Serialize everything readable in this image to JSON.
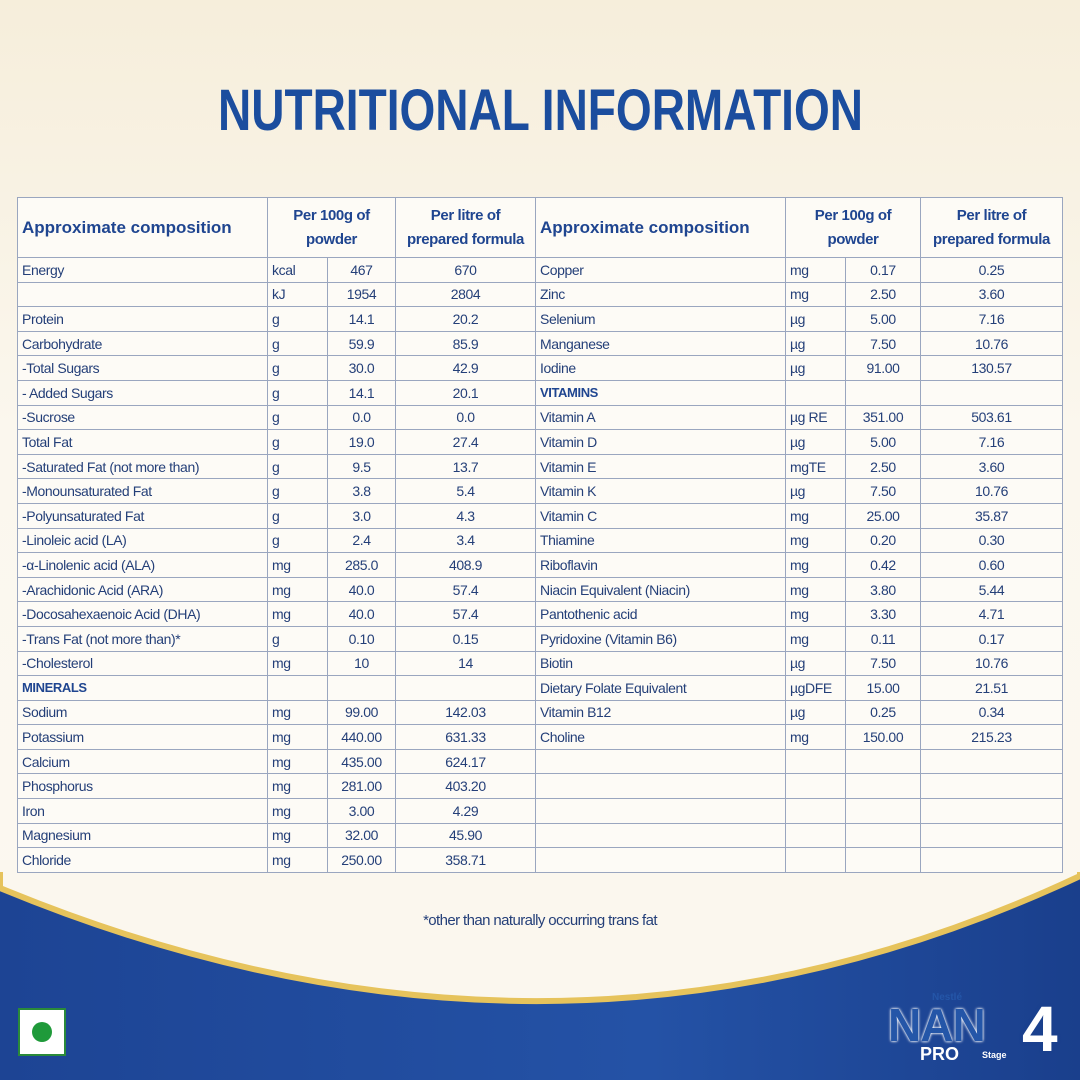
{
  "title": "NUTRITIONAL INFORMATION",
  "table": {
    "headers": [
      "Approximate composition",
      "Per 100g of powder",
      "Per litre of prepared formula"
    ],
    "left_rows": [
      [
        "Energy",
        "kcal",
        "467",
        "670"
      ],
      [
        null,
        "kJ",
        "1954",
        "2804"
      ],
      [
        "Protein",
        "g",
        "14.1",
        "20.2"
      ],
      [
        "Carbohydrate",
        "g",
        "59.9",
        "85.9"
      ],
      [
        "-Total Sugars",
        "g",
        "30.0",
        "42.9"
      ],
      [
        "- Added Sugars",
        "g",
        "14.1",
        "20.1"
      ],
      [
        "-Sucrose",
        "g",
        "0.0",
        "0.0"
      ],
      [
        "Total Fat",
        "g",
        "19.0",
        "27.4"
      ],
      [
        "-Saturated Fat (not more than)",
        "g",
        "9.5",
        "13.7"
      ],
      [
        "-Monounsaturated Fat",
        "g",
        "3.8",
        "5.4"
      ],
      [
        "-Polyunsaturated Fat",
        "g",
        "3.0",
        "4.3"
      ],
      [
        "-Linoleic acid (LA)",
        "g",
        "2.4",
        "3.4"
      ],
      [
        "-α-Linolenic acid (ALA)",
        "mg",
        "285.0",
        "408.9"
      ],
      [
        "-Arachidonic Acid (ARA)",
        "mg",
        "40.0",
        "57.4"
      ],
      [
        "-Docosahexaenoic Acid (DHA)",
        "mg",
        "40.0",
        "57.4"
      ],
      [
        "-Trans Fat (not more than)*",
        "g",
        "0.10",
        "0.15"
      ],
      [
        "-Cholesterol",
        "mg",
        "10",
        "14"
      ],
      [
        "MINERALS"
      ],
      [
        "Sodium",
        "mg",
        "99.00",
        "142.03"
      ],
      [
        "Potassium",
        "mg",
        "440.00",
        "631.33"
      ],
      [
        "Calcium",
        "mg",
        "435.00",
        "624.17"
      ],
      [
        "Phosphorus",
        "mg",
        "281.00",
        "403.20"
      ],
      [
        "Iron",
        "mg",
        "3.00",
        "4.29"
      ],
      [
        "Magnesium",
        "mg",
        "32.00",
        "45.90"
      ],
      [
        "Chloride",
        "mg",
        "250.00",
        "358.71"
      ]
    ],
    "right_rows": [
      [
        "Copper",
        "mg",
        "0.17",
        "0.25"
      ],
      [
        "Zinc",
        "mg",
        "2.50",
        "3.60"
      ],
      [
        "Selenium",
        "µg",
        "5.00",
        "7.16"
      ],
      [
        "Manganese",
        "µg",
        "7.50",
        "10.76"
      ],
      [
        "Iodine",
        "µg",
        "91.00",
        "130.57"
      ],
      [
        "VITAMINS"
      ],
      [
        "Vitamin A",
        "µg RE",
        "351.00",
        "503.61"
      ],
      [
        "Vitamin D",
        "µg",
        "5.00",
        "7.16"
      ],
      [
        "Vitamin E",
        "mgTE",
        "2.50",
        "3.60"
      ],
      [
        "Vitamin K",
        "µg",
        "7.50",
        "10.76"
      ],
      [
        "Vitamin C",
        "mg",
        "25.00",
        "35.87"
      ],
      [
        "Thiamine",
        "mg",
        "0.20",
        "0.30"
      ],
      [
        "Riboflavin",
        "mg",
        "0.42",
        "0.60"
      ],
      [
        "Niacin Equivalent (Niacin)",
        "mg",
        "3.80",
        "5.44"
      ],
      [
        "Pantothenic acid",
        "mg",
        "3.30",
        "4.71"
      ],
      [
        "Pyridoxine (Vitamin B6)",
        "mg",
        "0.11",
        "0.17"
      ],
      [
        "Biotin",
        "µg",
        "7.50",
        "10.76"
      ],
      [
        "Dietary Folate Equivalent",
        "µgDFE",
        "15.00",
        "21.51"
      ],
      [
        "Vitamin B12",
        "µg",
        "0.25",
        "0.34"
      ],
      [
        "Choline",
        "mg",
        "150.00",
        "215.23"
      ]
    ]
  },
  "footnote": "*other than naturally occurring trans fat",
  "brand": {
    "maker": "Nestlé",
    "name": "NAN",
    "line": "PRO",
    "stage_label": "Stage",
    "stage": "4"
  }
}
